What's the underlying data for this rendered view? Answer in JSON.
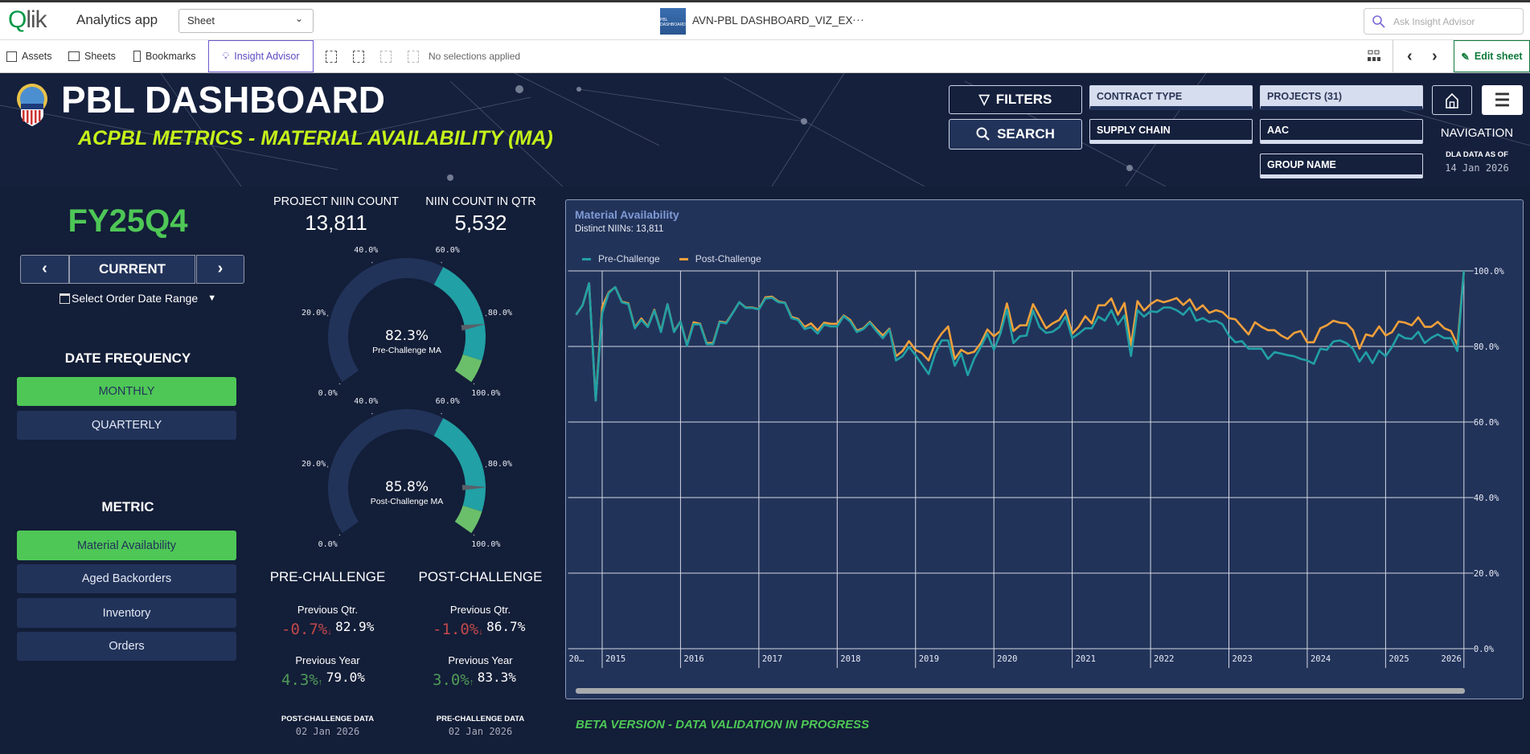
{
  "topbar": {
    "app_name": "Analytics app",
    "sheet_select": "Sheet",
    "thumb_text": "PBL DASHBOARD",
    "doc_title": "AVN-PBL DASHBOARD_VIZ_EX",
    "more": "···",
    "ask_placeholder": "Ask Insight Advisor"
  },
  "toolbar": {
    "assets": "Assets",
    "sheets": "Sheets",
    "bookmarks": "Bookmarks",
    "insight": "Insight Advisor",
    "no_selections": "No selections applied",
    "edit_sheet": "Edit sheet"
  },
  "header": {
    "title": "PBL DASHBOARD",
    "subtitle": "ACPBL METRICS - MATERIAL AVAILABILITY (MA)",
    "filters": "FILTERS",
    "search": "SEARCH",
    "filter_boxes": [
      "CONTRACT TYPE",
      "SUPPLY CHAIN",
      "PROJECTS (31)",
      "AAC",
      "GROUP NAME"
    ],
    "navigation": "NAVIGATION",
    "dla_label": "DLA DATA AS OF",
    "dla_date": "14 Jan 2026"
  },
  "left": {
    "period": "FY25Q4",
    "prev": "‹",
    "current": "CURRENT",
    "next": "›",
    "date_range": "Select Order Date Range",
    "freq_title": "DATE FREQUENCY",
    "freq": [
      "MONTHLY",
      "QUARTERLY"
    ],
    "metric_title": "METRIC",
    "metrics": [
      "Material Availability",
      "Aged Backorders",
      "Inventory",
      "Orders"
    ]
  },
  "counts": {
    "project_label": "PROJECT NIIN COUNT",
    "project_value": "13,811",
    "qtr_label": "NIIN COUNT IN QTR",
    "qtr_value": "5,532"
  },
  "gauges": [
    {
      "value": 82.3,
      "value_text": "82.3%",
      "label": "Pre-Challenge MA",
      "ticks": [
        "0.0%",
        "20.0%",
        "40.0%",
        "60.0%",
        "80.0%",
        "100.0%"
      ]
    },
    {
      "value": 85.8,
      "value_text": "85.8%",
      "label": "Post-Challenge MA",
      "ticks": [
        "0.0%",
        "20.0%",
        "40.0%",
        "60.0%",
        "80.0%",
        "100.0%"
      ]
    }
  ],
  "gauge_bands": [
    {
      "from": 0,
      "to": 61,
      "color": "#22335a"
    },
    {
      "from": 61,
      "to": 93,
      "color": "#21a0a5"
    },
    {
      "from": 93,
      "to": 100,
      "color": "#6bbf6a"
    }
  ],
  "kpis": [
    {
      "title": "PRE-CHALLENGE",
      "pq_label": "Previous Qtr.",
      "pq_delta": "-0.7%",
      "pq_arrow": "↓",
      "pq_value": "82.9%",
      "py_label": "Previous Year",
      "py_delta": "4.3%",
      "py_arrow": "↑",
      "py_value": "79.0%",
      "data_label": "POST-CHALLENGE DATA",
      "data_date": "02 Jan 2026"
    },
    {
      "title": "POST-CHALLENGE",
      "pq_label": "Previous Qtr.",
      "pq_delta": "-1.0%",
      "pq_arrow": "↓",
      "pq_value": "86.7%",
      "py_label": "Previous Year",
      "py_delta": "3.0%",
      "py_arrow": "↑",
      "py_value": "83.3%",
      "data_label": "PRE-CHALLENGE DATA",
      "data_date": "02 Jan 2026"
    }
  ],
  "beta": "BETA VERSION - DATA VALIDATION IN PROGRESS",
  "colors": {
    "pre": "#21a0a5",
    "post": "#f0a03a",
    "green": "#4ec756",
    "lime": "#c6f21a",
    "red": "#c0484a",
    "up": "#4f9a58"
  },
  "chart_data": {
    "type": "line",
    "title": "Material Availability",
    "subtitle": "Distinct NIINs: 13,811",
    "x_start": "2014-09",
    "x_end": "2026-01",
    "x_unit": "month",
    "x_tick_labels": [
      "20…",
      "2015",
      "2016",
      "2017",
      "2018",
      "2019",
      "2020",
      "2021",
      "2022",
      "2023",
      "2024",
      "2025",
      "2026"
    ],
    "y_tick_labels": [
      "0.0%",
      "20.0%",
      "40.0%",
      "60.0%",
      "80.0%",
      "100.0%"
    ],
    "ylim": [
      0,
      100
    ],
    "grid": true,
    "legend": "top-left",
    "series": [
      {
        "name": "Pre-Challenge",
        "values": [
          88.4,
          90.9,
          96.7,
          65.7,
          88.8,
          94.1,
          95.7,
          91.7,
          91.2,
          84.8,
          87.0,
          85.1,
          89.5,
          83.8,
          91.2,
          83.8,
          86.6,
          80.2,
          85.9,
          85.8,
          80.6,
          80.6,
          86.4,
          86.1,
          88.8,
          91.7,
          90.2,
          90.2,
          89.8,
          92.7,
          92.9,
          91.7,
          91.5,
          87.5,
          87.0,
          84.6,
          85.1,
          83.4,
          85.8,
          85.3,
          85.3,
          88.0,
          86.6,
          83.8,
          84.6,
          86.3,
          84.1,
          82.2,
          84.5,
          76.3,
          77.4,
          79.9,
          77.7,
          75.2,
          72.7,
          78.1,
          81.6,
          81.6,
          74.9,
          78.1,
          72.4,
          76.8,
          79.9,
          83.4,
          79.1,
          83.4,
          89.8,
          80.9,
          82.7,
          82.9,
          89.5,
          85.1,
          83.6,
          83.9,
          85.1,
          88.0,
          82.2,
          83.4,
          84.8,
          84.8,
          87.9,
          86.8,
          89.6,
          85.8,
          88.2,
          77.5,
          89.6,
          87.9,
          89.3,
          89.1,
          90.3,
          90.3,
          89.6,
          88.4,
          90.3,
          86.8,
          87.5,
          86.5,
          86.8,
          85.9,
          82.9,
          81.1,
          81.4,
          79.4,
          79.4,
          79.4,
          76.7,
          78.5,
          78.1,
          77.7,
          77.4,
          76.7,
          76.3,
          75.4,
          79.4,
          79.1,
          81.3,
          81.6,
          80.9,
          79.4,
          76.0,
          78.5,
          75.6,
          78.9,
          77.4,
          79.9,
          83.2,
          82.2,
          82.0,
          83.9,
          80.9,
          82.3,
          83.2,
          82.2,
          82.2,
          78.8,
          100
        ]
      },
      {
        "name": "Post-Challenge",
        "values": [
          88.4,
          90.9,
          96.7,
          65.7,
          90.5,
          94.3,
          95.7,
          91.9,
          91.4,
          85.0,
          87.4,
          85.3,
          89.7,
          84.0,
          91.2,
          84.0,
          86.6,
          80.4,
          86.4,
          86.0,
          80.9,
          80.9,
          86.6,
          86.3,
          88.9,
          91.7,
          90.3,
          90.3,
          89.9,
          93.0,
          93.2,
          91.9,
          91.6,
          87.8,
          87.3,
          85.2,
          86.1,
          84.3,
          86.3,
          86.0,
          86.0,
          88.2,
          87.0,
          84.2,
          84.8,
          86.5,
          84.6,
          82.9,
          84.7,
          77.4,
          78.8,
          81.4,
          79.1,
          78.2,
          76.3,
          80.8,
          83.4,
          85.3,
          76.7,
          79.1,
          78.1,
          78.6,
          80.9,
          84.5,
          82.7,
          84.1,
          91.4,
          84.1,
          85.6,
          85.6,
          91.2,
          88.0,
          84.8,
          86.1,
          87.0,
          89.6,
          83.4,
          85.2,
          88.0,
          86.1,
          90.9,
          90.9,
          92.7,
          88.4,
          91.5,
          80.2,
          92.0,
          89.5,
          91.2,
          92.3,
          91.7,
          92.2,
          92.8,
          91.0,
          92.5,
          89.6,
          90.9,
          88.9,
          89.6,
          89.1,
          87.5,
          87.2,
          85.2,
          83.2,
          86.4,
          85.2,
          84.3,
          84.3,
          82.9,
          82.0,
          83.6,
          84.1,
          81.1,
          81.1,
          84.8,
          85.6,
          86.8,
          86.3,
          86.1,
          84.3,
          79.4,
          83.2,
          82.7,
          85.3,
          82.9,
          83.8,
          86.6,
          86.3,
          85.6,
          87.7,
          85.2,
          85.2,
          86.5,
          84.8,
          84.1,
          80.4,
          100
        ]
      }
    ]
  }
}
